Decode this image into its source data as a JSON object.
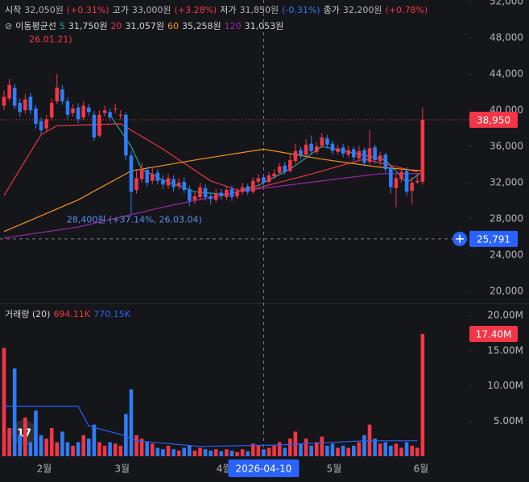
{
  "chart_data": {
    "type": "candlestick",
    "header": [
      {
        "label": "시작",
        "value": "32,050원",
        "change": "(+0.31%)",
        "color": "#f23645"
      },
      {
        "label": "고가",
        "value": "33,000원",
        "change": "(+3.28%)",
        "color": "#f23645"
      },
      {
        "label": "저가",
        "value": "31,850원",
        "change": "(-0.31%)",
        "color": "#2f7cf6"
      },
      {
        "label": "종가",
        "value": "32,200원",
        "change": "(+0.78%)",
        "color": "#f23645"
      }
    ],
    "ma_title": "이동평균선",
    "up_color": "#f23645",
    "down_color": "#2f7cf6",
    "xlim": [
      -0.76,
      87.84
    ],
    "ylim": [
      18670,
      52180
    ],
    "yticks": [
      {
        "value": 52000,
        "label": "52,000"
      },
      {
        "value": 48000,
        "label": "48,000"
      },
      {
        "value": 44000,
        "label": "44,000"
      },
      {
        "value": 40000,
        "label": "40,000"
      },
      {
        "value": 36000,
        "label": "36,000"
      },
      {
        "value": 32000,
        "label": "32,000"
      },
      {
        "value": 28000,
        "label": "28,000"
      },
      {
        "value": 24000,
        "label": "24,000"
      },
      {
        "value": 20000,
        "label": "20,000"
      }
    ],
    "xticks": [
      {
        "value": 7.6,
        "label": "2월"
      },
      {
        "value": 22.3,
        "label": "3월"
      },
      {
        "value": 41.5,
        "label": "4월"
      },
      {
        "value": 62.3,
        "label": "5월"
      },
      {
        "value": 78.7,
        "label": "6월"
      }
    ],
    "crosshair": {
      "x": 49,
      "label": "2026-04-10"
    },
    "open": [
      40500,
      41300,
      42500,
      40800,
      40000,
      41500,
      40200,
      38800,
      38000,
      39200,
      41000,
      42300,
      41000,
      39700,
      40300,
      39200,
      40300,
      39500,
      37200,
      39700,
      39800,
      40100,
      39400,
      39500,
      35000,
      31200,
      32400,
      33400,
      32200,
      33100,
      32300,
      31700,
      32400,
      31600,
      32100,
      31300,
      30100,
      30400,
      31400,
      30500,
      30100,
      30900,
      30400,
      31300,
      30500,
      31000,
      31600,
      31000,
      32100,
      32600,
      32100,
      32700,
      33100,
      33900,
      33300,
      34400,
      35600,
      35100,
      36300,
      35400,
      36100,
      36900,
      36300,
      35400,
      35900,
      35100,
      35700,
      34700,
      35600,
      34300,
      35900,
      34400,
      35100,
      33600,
      31400,
      32400,
      33300,
      31100,
      32050,
      32100
    ],
    "high": [
      42200,
      43500,
      42900,
      41300,
      41800,
      41900,
      40600,
      39200,
      39500,
      41300,
      44000,
      42800,
      41400,
      40700,
      40800,
      41000,
      40700,
      39900,
      40000,
      40500,
      40200,
      40700,
      40000,
      39800,
      35500,
      33500,
      34200,
      33800,
      33600,
      33500,
      32800,
      33000,
      32800,
      32500,
      32600,
      31700,
      31000,
      32000,
      31800,
      30900,
      31300,
      31300,
      31600,
      31700,
      31400,
      32000,
      31900,
      32600,
      33000,
      32900,
      33200,
      33500,
      34200,
      34300,
      35200,
      36300,
      36000,
      36800,
      37200,
      36500,
      37500,
      37300,
      36700,
      36200,
      36300,
      36100,
      36000,
      36100,
      35900,
      37800,
      36200,
      35400,
      35300,
      33900,
      32900,
      33600,
      33700,
      32600,
      33000,
      40300
    ],
    "low": [
      40000,
      41000,
      40100,
      39300,
      39600,
      39500,
      38000,
      37300,
      37600,
      38900,
      40700,
      40600,
      39000,
      39300,
      38600,
      38900,
      39400,
      36600,
      37000,
      39300,
      38800,
      39700,
      39000,
      34500,
      28400,
      30800,
      32000,
      31600,
      31800,
      31800,
      31300,
      31300,
      31000,
      31200,
      30800,
      29400,
      29600,
      30100,
      30000,
      29600,
      29800,
      30100,
      30100,
      30000,
      30200,
      30700,
      30600,
      30800,
      31800,
      31700,
      31900,
      32400,
      32900,
      32900,
      33100,
      34100,
      34600,
      34900,
      35100,
      35100,
      35800,
      35800,
      35100,
      35100,
      34800,
      34800,
      34400,
      34400,
      33800,
      34000,
      34100,
      33900,
      33100,
      30800,
      29300,
      32000,
      30500,
      29600,
      31850,
      31800
    ],
    "close": [
      41500,
      42800,
      40500,
      39800,
      41200,
      40000,
      38500,
      37800,
      39000,
      40800,
      42500,
      41000,
      39500,
      40200,
      39000,
      40500,
      39800,
      37000,
      39500,
      40000,
      39200,
      40200,
      39500,
      35000,
      31000,
      32500,
      33500,
      32000,
      33000,
      32200,
      31800,
      32500,
      31500,
      32000,
      31200,
      30000,
      30500,
      31500,
      30400,
      30200,
      30800,
      30500,
      31200,
      30400,
      31000,
      31500,
      31000,
      32200,
      32500,
      32000,
      32800,
      33000,
      33800,
      33200,
      34500,
      35500,
      35000,
      36200,
      35500,
      36000,
      37000,
      36200,
      35500,
      35800,
      35200,
      35600,
      34800,
      35500,
      34200,
      35800,
      34500,
      35000,
      33500,
      31500,
      32500,
      33200,
      31000,
      32000,
      32200,
      38950
    ],
    "series": [
      {
        "name": "5",
        "last": "31,750원",
        "color": "#26a69a",
        "x": [
          20,
          24,
          26,
          30,
          36,
          42,
          48,
          54,
          60,
          66,
          72,
          76,
          79
        ],
        "values": [
          39500,
          36000,
          33500,
          32300,
          31000,
          30700,
          31700,
          33500,
          36000,
          35300,
          34500,
          32000,
          33200
        ]
      },
      {
        "name": "20",
        "last": "31,057원",
        "color": "#e8344a",
        "x": [
          0,
          7,
          10,
          22,
          30,
          39,
          45,
          57,
          68,
          78
        ],
        "values": [
          30600,
          37300,
          38300,
          38500,
          35700,
          32200,
          31000,
          32800,
          34600,
          33200
        ]
      },
      {
        "name": "60",
        "last": "35,258원",
        "color": "#f7931a",
        "x": [
          0,
          14,
          24,
          37,
          49,
          60,
          71,
          79
        ],
        "values": [
          26600,
          30100,
          33300,
          34600,
          35700,
          34600,
          33700,
          33300
        ]
      },
      {
        "name": "120",
        "last": "31,053원",
        "color": "#9c27b0",
        "x": [
          0,
          14,
          30,
          45,
          60,
          71,
          79
        ],
        "values": [
          25900,
          27100,
          29300,
          31100,
          32200,
          33000,
          33000
        ]
      }
    ],
    "price_lines": [
      {
        "value": 38950,
        "label": "38,950",
        "color": "#f23645"
      },
      {
        "value": 25791,
        "label": "25,791",
        "color": "#2962ff"
      }
    ],
    "annotations": [
      {
        "x": 24,
        "value": 28400,
        "text": "28,400원 (+37.14%, 26.03.04)",
        "color": "#5b8def"
      },
      {
        "x": 4.5,
        "value": 47800,
        "text": "26.01.21)",
        "color": "#f23645"
      }
    ],
    "volume": {
      "title": "거래량 (20)",
      "last": "694.11K",
      "ma_last": "770.15K",
      "ylim": [
        0,
        21.4
      ],
      "yticks": [
        {
          "value": 20,
          "label": "20.00M"
        },
        {
          "value": 15,
          "label": "15.00M"
        },
        {
          "value": 10,
          "label": "10.00M"
        },
        {
          "value": 5,
          "label": "5.00M"
        }
      ],
      "values": [
        15.4,
        4,
        12.5,
        3,
        5.5,
        2,
        6.5,
        3,
        2.5,
        4,
        2,
        3.5,
        2,
        1.5,
        2,
        3,
        2.5,
        4.5,
        2,
        1.5,
        2,
        1.8,
        1.5,
        6,
        9.5,
        3,
        2.5,
        2,
        1.8,
        1.2,
        1,
        1.5,
        1,
        0.8,
        1.2,
        1.5,
        0.8,
        1.2,
        1,
        0.8,
        1,
        0.7,
        1,
        0.8,
        0.6,
        1,
        0.7,
        1.8,
        1.5,
        1,
        1.2,
        1.5,
        2,
        1.2,
        2.5,
        3.5,
        1.8,
        2.5,
        1.5,
        2,
        2.8,
        1.5,
        1.8,
        1.2,
        1.5,
        1.2,
        1.5,
        2,
        3,
        4.5,
        2.5,
        1.8,
        2,
        1.5,
        1.8,
        1.2,
        2,
        1.5,
        1.2,
        17.4
      ],
      "ma": {
        "color": "#2962ff",
        "x": [
          0,
          14,
          16,
          22,
          25,
          37,
          52,
          68,
          78
        ],
        "values": [
          7.1,
          7.1,
          4.3,
          3.1,
          2.2,
          1.4,
          1.6,
          2.2,
          2.2
        ]
      },
      "last_line": {
        "value": 17.4,
        "label": "17.40M",
        "color": "#f23645"
      }
    }
  }
}
